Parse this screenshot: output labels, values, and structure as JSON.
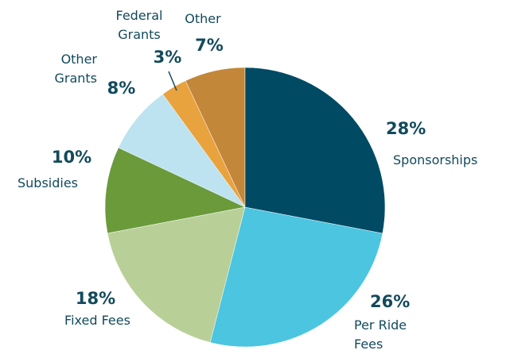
{
  "chart_data": {
    "type": "pie",
    "categories": [
      "Sponsorships",
      "Per Ride Fees",
      "Fixed Fees",
      "Subsidies",
      "Other Grants",
      "Federal Grants",
      "Other"
    ],
    "values": [
      28,
      26,
      18,
      10,
      8,
      3,
      7
    ],
    "value_labels": [
      "28%",
      "26%",
      "18%",
      "10%",
      "8%",
      "3%",
      "7%"
    ],
    "colors": [
      "#004a63",
      "#4bc5e0",
      "#b8d098",
      "#6a9a3a",
      "#bde3f0",
      "#e8a23e",
      "#c3873a"
    ]
  }
}
